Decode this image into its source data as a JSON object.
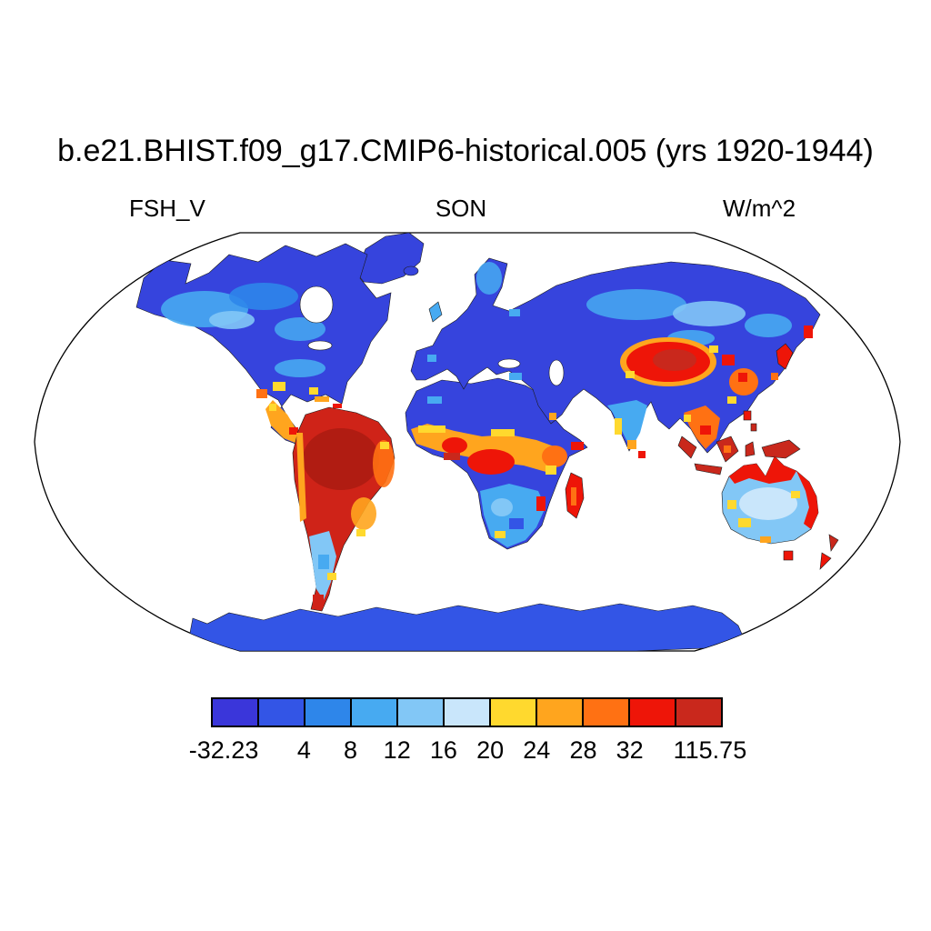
{
  "title": "b.e21.BHIST.f09_g17.CMIP6-historical.005 (yrs 1920-1944)",
  "header": {
    "variable": "FSH_V",
    "season": "SON",
    "units": "W/m^2"
  },
  "chart_data": {
    "type": "heatmap",
    "subtype": "global-map",
    "projection": "Robinson",
    "title": "b.e21.BHIST.f09_g17.CMIP6-historical.005 (yrs 1920-1944)",
    "variable": "FSH_V",
    "season": "SON",
    "units": "W/m^2",
    "ocean_color": "#ffffff",
    "colorbar": {
      "orientation": "horizontal",
      "position": "bottom",
      "min": -32.23,
      "max": 115.75,
      "levels": [
        4,
        8,
        12,
        16,
        20,
        24,
        28,
        32
      ],
      "tick_labels": [
        "-32.23",
        "4",
        "8",
        "12",
        "16",
        "20",
        "24",
        "28",
        "32",
        "115.75"
      ],
      "tick_positions": [
        0.025,
        0.1818,
        0.2727,
        0.3636,
        0.4545,
        0.5455,
        0.6364,
        0.7273,
        0.8182,
        0.975
      ],
      "palette": [
        "#3a36da",
        "#3355e6",
        "#2e86ea",
        "#47aaf1",
        "#82c7f6",
        "#c9e6fb",
        "#ffd92e",
        "#ffa51e",
        "#ff7113",
        "#ee1508",
        "#c9281c"
      ]
    },
    "map_regions": [
      {
        "region": "Arctic and boreal North America",
        "approx_range_wm2": "< 4 with 8-16 mottling inland"
      },
      {
        "region": "Greenland",
        "approx_range_wm2": "< 4"
      },
      {
        "region": "Mexico and Central America",
        "approx_range_wm2": "20 to > 32"
      },
      {
        "region": "Amazon basin",
        "approx_range_wm2": "> 32"
      },
      {
        "region": "Southern South America",
        "approx_range_wm2": "8-16 with red tip in far south"
      },
      {
        "region": "Sahara and Arabia",
        "approx_range_wm2": "< 4"
      },
      {
        "region": "Sahel and central Africa",
        "approx_range_wm2": "20 to > 32"
      },
      {
        "region": "Southern Africa",
        "approx_range_wm2": "8-24 mixed"
      },
      {
        "region": "Madagascar",
        "approx_range_wm2": "> 28"
      },
      {
        "region": "Europe and Siberia",
        "approx_range_wm2": "< 4 with 8-16 mottling"
      },
      {
        "region": "Tibetan Plateau and east China patches",
        "approx_range_wm2": "> 32"
      },
      {
        "region": "India",
        "approx_range_wm2": "8-20"
      },
      {
        "region": "Southeast Asia and Maritime Continent",
        "approx_range_wm2": "28 to > 32"
      },
      {
        "region": "Australia interior",
        "approx_range_wm2": "8-20"
      },
      {
        "region": "Australia north and east coasts, New Zealand",
        "approx_range_wm2": "> 28"
      },
      {
        "region": "Antarctica",
        "approx_range_wm2": "< 4"
      }
    ]
  }
}
